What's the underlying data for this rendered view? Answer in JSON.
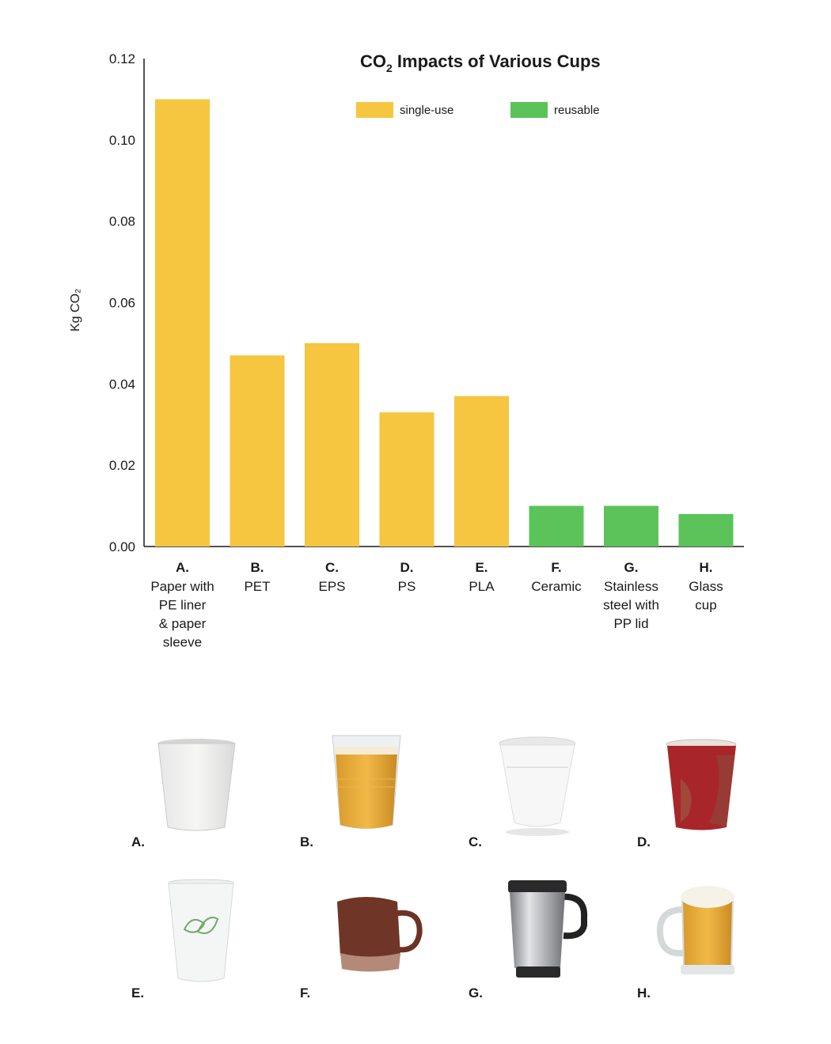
{
  "chart_data": {
    "type": "bar",
    "title_main": "CO",
    "title_sub": "2",
    "title_rest": " Impacts of Various Cups",
    "ylabel": "Kg CO₂",
    "ylim": [
      0,
      0.12
    ],
    "yticks": [
      "0.00",
      "0.02",
      "0.04",
      "0.06",
      "0.08",
      "0.10",
      "0.12"
    ],
    "legend": [
      {
        "name": "single-use",
        "color": "#F6C640"
      },
      {
        "name": "reusable",
        "color": "#5BC35A"
      }
    ],
    "categories": [
      {
        "letter": "A.",
        "lines": [
          "Paper with",
          "PE liner",
          "& paper",
          "sleeve"
        ],
        "value": 0.11,
        "group": "single-use"
      },
      {
        "letter": "B.",
        "lines": [
          "PET"
        ],
        "value": 0.047,
        "group": "single-use"
      },
      {
        "letter": "C.",
        "lines": [
          "EPS"
        ],
        "value": 0.05,
        "group": "single-use"
      },
      {
        "letter": "D.",
        "lines": [
          "PS"
        ],
        "value": 0.033,
        "group": "single-use"
      },
      {
        "letter": "E.",
        "lines": [
          "PLA"
        ],
        "value": 0.037,
        "group": "single-use"
      },
      {
        "letter": "F.",
        "lines": [
          "Ceramic"
        ],
        "value": 0.01,
        "group": "reusable"
      },
      {
        "letter": "G.",
        "lines": [
          "Stainless",
          "steel with",
          "PP lid"
        ],
        "value": 0.01,
        "group": "reusable"
      },
      {
        "letter": "H.",
        "lines": [
          "Glass",
          "cup"
        ],
        "value": 0.008,
        "group": "reusable"
      }
    ]
  },
  "cups": {
    "labels": [
      "A.",
      "B.",
      "C.",
      "D.",
      "E.",
      "F.",
      "G.",
      "H."
    ],
    "icons": [
      "paper-cup-icon",
      "pet-cup-icon",
      "foam-cup-icon",
      "ps-cup-icon",
      "pla-cup-icon",
      "ceramic-mug-icon",
      "steel-travel-mug-icon",
      "glass-beer-mug-icon"
    ]
  }
}
